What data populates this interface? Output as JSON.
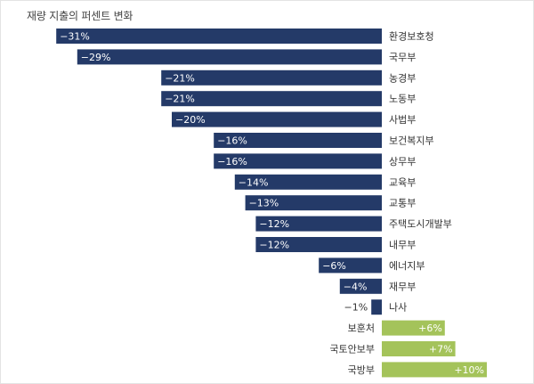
{
  "chart_data": {
    "type": "bar",
    "orientation": "horizontal",
    "title": "재량 지출의 퍼센트 변화",
    "xlabel": "",
    "ylabel": "",
    "categories": [
      "환경보호청",
      "국무부",
      "농경부",
      "노동부",
      "사법부",
      "보건복지부",
      "상무부",
      "교육부",
      "교통부",
      "주택도시개발부",
      "내무부",
      "에너지부",
      "재무부",
      "나사",
      "보훈처",
      "국토안보부",
      "국방부"
    ],
    "values": [
      -31,
      -29,
      -21,
      -21,
      -20,
      -16,
      -16,
      -14,
      -13,
      -12,
      -12,
      -6,
      -4,
      -1,
      6,
      7,
      10
    ],
    "value_labels": [
      "−31%",
      "−29%",
      "−21%",
      "−21%",
      "−20%",
      "−16%",
      "−16%",
      "−14%",
      "−13%",
      "−12%",
      "−12%",
      "−6%",
      "−4%",
      "−1%",
      "+6%",
      "+7%",
      "+10%"
    ],
    "xlim": [
      -31,
      10
    ],
    "grid": false,
    "colors": {
      "negative": "#243a68",
      "positive": "#a4c35a",
      "label_on_bar": "#ffffff",
      "label_off_bar": "#333333",
      "category_text": "#333333",
      "title_text": "#444444"
    }
  }
}
